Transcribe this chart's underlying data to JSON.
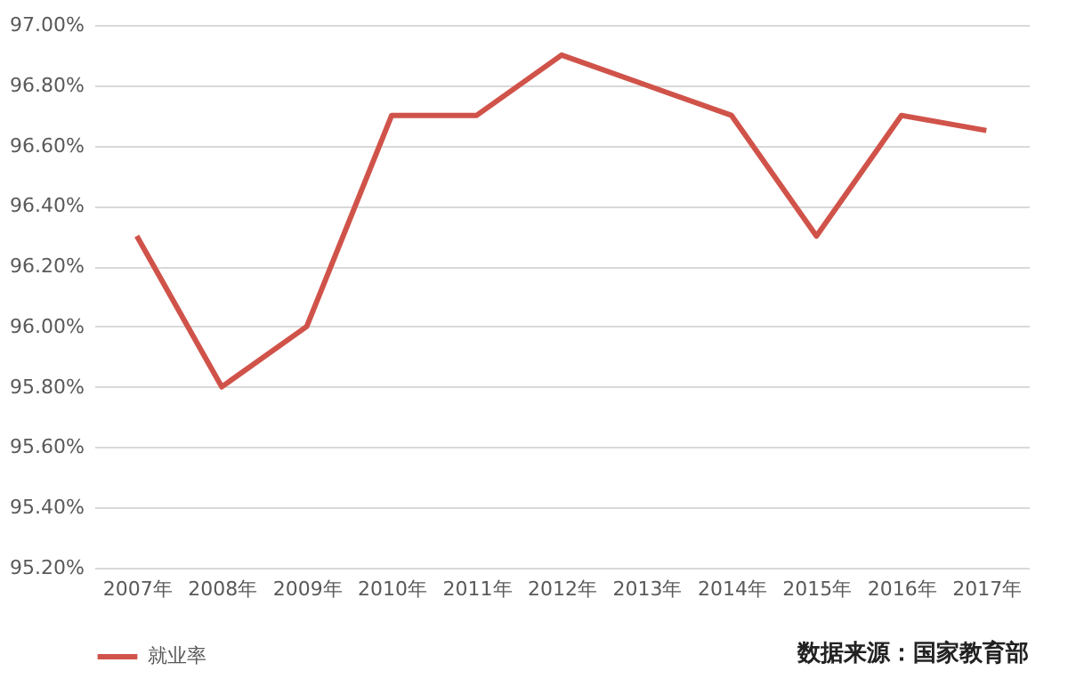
{
  "chart_data": {
    "type": "line",
    "categories": [
      "2007年",
      "2008年",
      "2009年",
      "2010年",
      "2011年",
      "2012年",
      "2013年",
      "2014年",
      "2015年",
      "2016年",
      "2017年"
    ],
    "series": [
      {
        "name": "就业率",
        "color": "#d0534a",
        "values": [
          96.3,
          95.8,
          96.0,
          96.7,
          96.7,
          96.9,
          96.8,
          96.7,
          96.3,
          96.7,
          96.65
        ]
      }
    ],
    "ylim": [
      95.2,
      97.0
    ],
    "yticks": [
      {
        "value": 95.2,
        "label": "95.20%"
      },
      {
        "value": 95.4,
        "label": "95.40%"
      },
      {
        "value": 95.6,
        "label": "95.60%"
      },
      {
        "value": 95.8,
        "label": "95.80%"
      },
      {
        "value": 96.0,
        "label": "96.00%"
      },
      {
        "value": 96.2,
        "label": "96.20%"
      },
      {
        "value": 96.4,
        "label": "96.40%"
      },
      {
        "value": 96.6,
        "label": "96.60%"
      },
      {
        "value": 96.8,
        "label": "96.80%"
      },
      {
        "value": 97.0,
        "label": "97.00%"
      }
    ],
    "grid": "y",
    "legend": "bottom",
    "marker": "none",
    "line_style": "solid",
    "annotations": [
      "数据来源：国家教育部"
    ]
  }
}
